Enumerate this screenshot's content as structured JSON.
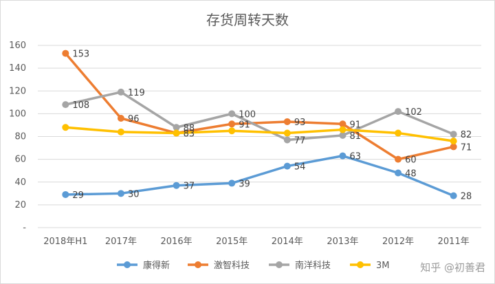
{
  "chart_data": {
    "type": "line",
    "title": "存货周转天数",
    "categories": [
      "2018年H1",
      "2017年",
      "2016年",
      "2015年",
      "2014年",
      "2013年",
      "2012年",
      "2011年"
    ],
    "y_ticks": [
      "-",
      "20",
      "40",
      "60",
      "80",
      "100",
      "120",
      "140",
      "160"
    ],
    "ylim": [
      0,
      160
    ],
    "grid": "horizontal",
    "legend_position": "bottom",
    "series": [
      {
        "name": "康得新",
        "color": "#5b9bd5",
        "values": [
          29,
          30,
          37,
          39,
          54,
          63,
          48,
          28
        ],
        "labels": [
          "29",
          "30",
          "37",
          "39",
          "54",
          "63",
          "48",
          "28"
        ]
      },
      {
        "name": "激智科技",
        "color": "#ed7d31",
        "values": [
          153,
          96,
          83,
          91,
          93,
          91,
          60,
          71
        ],
        "labels": [
          "153",
          "96",
          "83",
          "91",
          "93",
          "91",
          "60",
          "71"
        ]
      },
      {
        "name": "南洋科技",
        "color": "#a5a5a5",
        "values": [
          108,
          119,
          88,
          100,
          77,
          81,
          102,
          82
        ],
        "labels": [
          "108",
          "119",
          "88",
          "100",
          "77",
          "81",
          "102",
          "82"
        ]
      },
      {
        "name": "3M",
        "color": "#ffc000",
        "values": [
          88,
          84,
          83,
          85,
          83,
          86,
          83,
          76
        ],
        "labels": []
      }
    ]
  },
  "watermark": "知乎 @初善君"
}
